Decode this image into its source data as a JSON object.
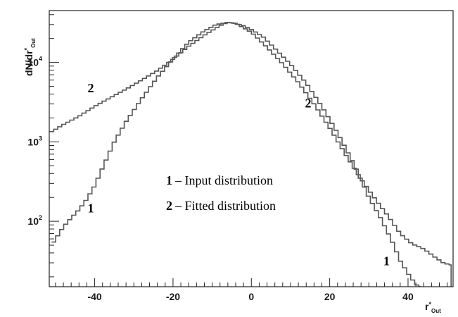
{
  "chart_data": {
    "type": "line",
    "scale_y": "log",
    "grid": false,
    "xlim": [
      -51.6,
      51.5
    ],
    "ylim": [
      15,
      45000
    ],
    "xlabel": {
      "main": "r",
      "sup": "*",
      "sub": "Out"
    },
    "ylabel": {
      "main": "dN/dr",
      "sup": "*",
      "sub": "Out"
    },
    "x_ticks": [
      {
        "value": -40,
        "label": "-40"
      },
      {
        "value": -20,
        "label": "-20"
      },
      {
        "value": 0,
        "label": "0"
      },
      {
        "value": 20,
        "label": "20"
      },
      {
        "value": 40,
        "label": "40"
      }
    ],
    "y_ticks": [
      {
        "value": 100,
        "base": "10",
        "exp": "2"
      },
      {
        "value": 1000,
        "base": "10",
        "exp": "3"
      },
      {
        "value": 10000,
        "base": "10",
        "exp": "4"
      }
    ],
    "series": [
      {
        "id": "1",
        "color": "#555555",
        "x": [
          -51,
          -48,
          -46,
          -44,
          -42,
          -40,
          -38,
          -35,
          -32,
          -28,
          -24,
          -20,
          -16,
          -12,
          -9,
          -6,
          -4,
          -2,
          0,
          3,
          6,
          10,
          14,
          18,
          22,
          26,
          30,
          33,
          36,
          38,
          40,
          42,
          43
        ],
        "y": [
          50,
          85,
          110,
          140,
          190,
          280,
          470,
          1000,
          1800,
          3500,
          6500,
          11000,
          18000,
          25000,
          30000,
          32000,
          31000,
          29000,
          26000,
          21000,
          15000,
          9500,
          5500,
          2800,
          1300,
          550,
          200,
          110,
          55,
          32,
          22,
          16,
          15
        ]
      },
      {
        "id": "2",
        "color": "#555555",
        "x": [
          -51.5,
          -48,
          -44,
          -40,
          -36,
          -32,
          -28,
          -24,
          -20,
          -16,
          -12,
          -8,
          -6,
          -4,
          0,
          4,
          8,
          12,
          16,
          20,
          24,
          28,
          32,
          35,
          38,
          41,
          44,
          47,
          49,
          51
        ],
        "y": [
          1300,
          1650,
          2100,
          2800,
          3600,
          4600,
          6000,
          7900,
          11000,
          16000,
          22000,
          29000,
          32000,
          31000,
          24000,
          15500,
          9600,
          5600,
          3000,
          1500,
          700,
          340,
          180,
          115,
          70,
          52,
          45,
          35,
          30,
          28
        ]
      }
    ],
    "annotations": [
      {
        "label": "2",
        "x": -41,
        "y": 4200
      },
      {
        "label": "1",
        "x": -41,
        "y": 130
      },
      {
        "label": "2",
        "x": 14.5,
        "y": 2700
      },
      {
        "label": "1",
        "x": 34.5,
        "y": 28
      }
    ],
    "legend": {
      "position": "center",
      "entries": [
        {
          "key": "1",
          "text": "– Input distribution"
        },
        {
          "key": "2",
          "text": "– Fitted distribution"
        }
      ]
    }
  }
}
